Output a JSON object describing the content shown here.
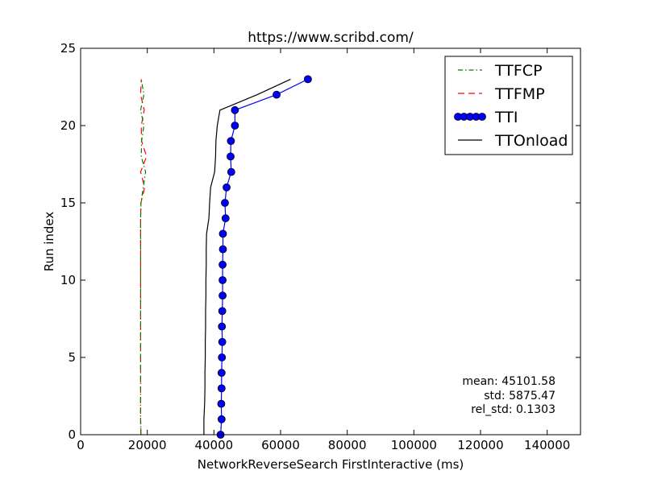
{
  "chart_data": {
    "type": "line",
    "title": "https://www.scribd.com/",
    "xlabel": "NetworkReverseSearch FirstInteractive (ms)",
    "ylabel": "Run index",
    "xlim": [
      0,
      150000
    ],
    "ylim": [
      0,
      25
    ],
    "xticks": [
      0,
      20000,
      40000,
      60000,
      80000,
      100000,
      120000,
      140000
    ],
    "yticks": [
      0,
      5,
      10,
      15,
      20,
      25
    ],
    "grid": false,
    "legend_position": "top-right",
    "series": [
      {
        "name": "TTFCP",
        "style": "dashdot",
        "color": "#008000",
        "marker": false,
        "x": [
          18100,
          18000,
          18000,
          18000,
          18000,
          18000,
          18000,
          18000,
          18000,
          18000,
          18000,
          18000,
          18000,
          18000,
          18000,
          18100,
          18800,
          19500,
          18200,
          18300,
          19000,
          18000,
          19000,
          18200
        ],
        "y": [
          0,
          1,
          2,
          3,
          4,
          5,
          6,
          7,
          8,
          9,
          10,
          11,
          12,
          13,
          14,
          15,
          16,
          17,
          18,
          19,
          20,
          21,
          22,
          23
        ]
      },
      {
        "name": "TTFMP",
        "style": "dashed",
        "color": "#ff0000",
        "marker": false,
        "x": [
          18100,
          18000,
          18000,
          18000,
          18000,
          18000,
          18000,
          18000,
          18000,
          18000,
          18000,
          18000,
          18000,
          18000,
          18000,
          18100,
          19200,
          18000,
          19800,
          18300,
          18200,
          19100,
          18000,
          18200
        ],
        "y": [
          0,
          1,
          2,
          3,
          4,
          5,
          6,
          7,
          8,
          9,
          10,
          11,
          12,
          13,
          14,
          15,
          16,
          17,
          18,
          19,
          20,
          21,
          22,
          23
        ]
      },
      {
        "name": "TTI",
        "style": "solid",
        "color": "#0000ff",
        "marker": true,
        "x": [
          42000,
          42300,
          42200,
          42300,
          42300,
          42400,
          42500,
          42400,
          42500,
          42600,
          42600,
          42600,
          42700,
          42700,
          43500,
          43300,
          43800,
          45200,
          45000,
          45100,
          46300,
          46300,
          58800,
          68200
        ],
        "y": [
          0,
          1,
          2,
          3,
          4,
          5,
          6,
          7,
          8,
          9,
          10,
          11,
          12,
          13,
          14,
          15,
          16,
          17,
          18,
          19,
          20,
          21,
          22,
          23
        ]
      },
      {
        "name": "TTOnload",
        "style": "solid",
        "color": "#000000",
        "marker": false,
        "x": [
          37000,
          37000,
          37200,
          37300,
          37300,
          37400,
          37400,
          37500,
          37500,
          37600,
          37600,
          37700,
          37700,
          37800,
          38500,
          38700,
          39000,
          40200,
          40500,
          40600,
          41000,
          41800,
          53000,
          63000
        ],
        "y": [
          0,
          1,
          2,
          3,
          4,
          5,
          6,
          7,
          8,
          9,
          10,
          11,
          12,
          13,
          14,
          15,
          16,
          17,
          18,
          19,
          20,
          21,
          22,
          23
        ]
      }
    ],
    "stats": {
      "mean": "mean: 45101.58",
      "std": "std: 5875.47",
      "rel_std": "rel_std: 0.1303"
    }
  }
}
